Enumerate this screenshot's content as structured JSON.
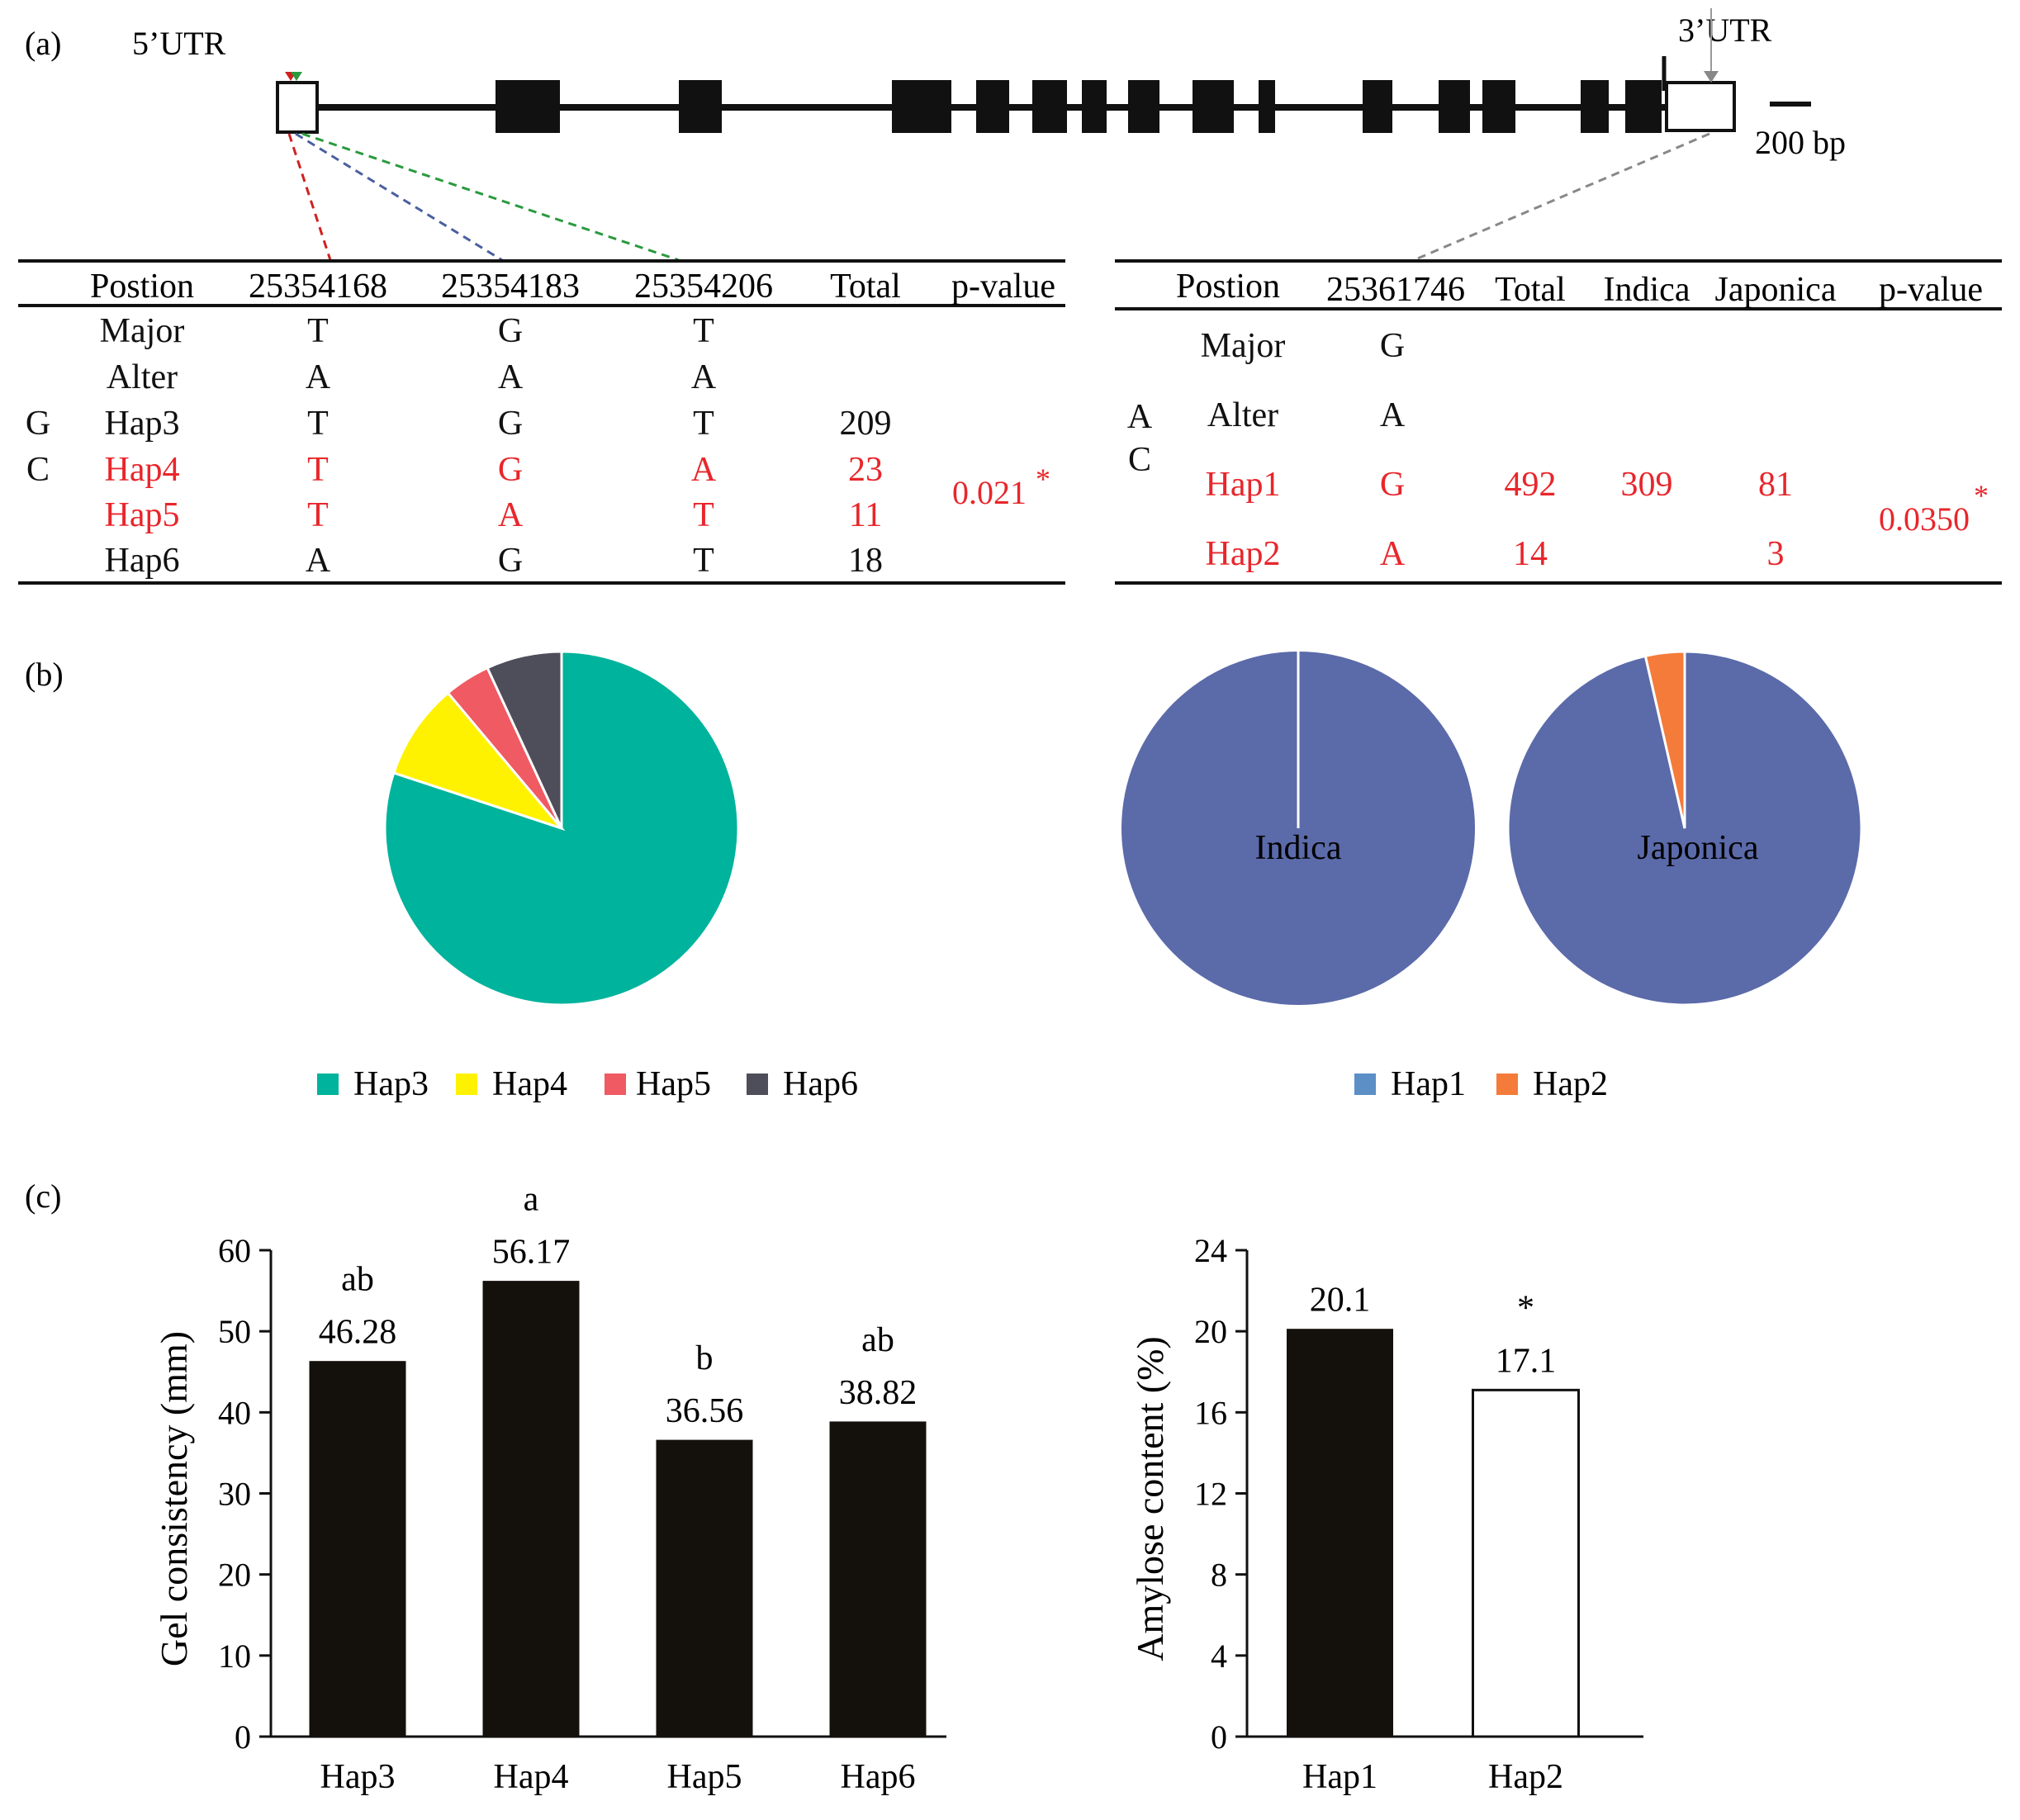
{
  "panels": {
    "a": "(a)",
    "b": "(b)",
    "c": "(c)"
  },
  "colors": {
    "red": "#e8262b",
    "hap3": "#00b39c",
    "hap4": "#fff200",
    "hap5": "#ef5a63",
    "hap6": "#4e4d5a",
    "hap1": "#5b6aa9",
    "hap1_legend": "#5b8fc6",
    "hap2": "#f47b3a",
    "bar": "#14100c"
  },
  "gene": {
    "utr5": "5’UTR",
    "utr3": "3’UTR",
    "scale": "200 bp"
  },
  "table_left": {
    "headers": [
      "Postion",
      "25354168",
      "25354183",
      "25354206",
      "Total",
      "p-value"
    ],
    "rows": [
      {
        "group": "",
        "name": "Major",
        "values": [
          "T",
          "G",
          "T"
        ],
        "total": "",
        "red": false
      },
      {
        "group": "",
        "name": "Alter",
        "values": [
          "A",
          "A",
          "A"
        ],
        "total": "",
        "red": false
      },
      {
        "group": "G",
        "name": "Hap3",
        "values": [
          "T",
          "G",
          "T"
        ],
        "total": "209",
        "red": false
      },
      {
        "group": "C",
        "name": "Hap4",
        "values": [
          "T",
          "G",
          "A"
        ],
        "total": "23",
        "red": true
      },
      {
        "group": "",
        "name": "Hap5",
        "values": [
          "T",
          "A",
          "T"
        ],
        "total": "11",
        "red": true
      },
      {
        "group": "",
        "name": "Hap6",
        "values": [
          "A",
          "G",
          "T"
        ],
        "total": "18",
        "red": false
      }
    ],
    "pvalue": "0.021",
    "star": "*"
  },
  "table_right": {
    "headers": [
      "Postion",
      "25361746",
      "Total",
      "Indica",
      "Japonica",
      "p-value"
    ],
    "rows": [
      {
        "group": "",
        "name": "Major",
        "value": "G",
        "total": "",
        "indica": "",
        "japonica": "",
        "red": false
      },
      {
        "group": "A",
        "name": "Alter",
        "value": "A",
        "total": "",
        "indica": "",
        "japonica": "",
        "red": false
      },
      {
        "group": "C",
        "name": "Hap1",
        "value": "G",
        "total": "492",
        "indica": "309",
        "japonica": "81",
        "red": true
      },
      {
        "group": "",
        "name": "Hap2",
        "value": "A",
        "total": "14",
        "indica": "",
        "japonica": "3",
        "red": true
      }
    ],
    "pvalue": "0.0350",
    "star": "*"
  },
  "chart_data": [
    {
      "type": "pie",
      "title": "",
      "labels": [
        "Hap3",
        "Hap4",
        "Hap5",
        "Hap6"
      ],
      "values": [
        209,
        23,
        11,
        18
      ],
      "legend": [
        "Hap3",
        "Hap4",
        "Hap5",
        "Hap6"
      ]
    },
    {
      "type": "pie",
      "title": "Indica",
      "labels": [
        "Hap1",
        "Hap2"
      ],
      "values": [
        309,
        0
      ]
    },
    {
      "type": "pie",
      "title": "Japonica",
      "labels": [
        "Hap1",
        "Hap2"
      ],
      "values": [
        81,
        3
      ],
      "legend": [
        "Hap1",
        "Hap2"
      ]
    },
    {
      "type": "bar",
      "categories": [
        "Hap3",
        "Hap4",
        "Hap5",
        "Hap6"
      ],
      "values": [
        46.28,
        56.17,
        36.56,
        38.82
      ],
      "value_labels": [
        "46.28",
        "56.17",
        "36.56",
        "38.82"
      ],
      "letters": [
        "ab",
        "a",
        "b",
        "ab"
      ],
      "ylabel": "Gel  consistency (mm)",
      "ylim": [
        0,
        60
      ],
      "yticks": [
        "0",
        "10",
        "20",
        "30",
        "40",
        "50",
        "60"
      ]
    },
    {
      "type": "bar",
      "categories": [
        "Hap1",
        "Hap2"
      ],
      "values": [
        20.1,
        17.1
      ],
      "value_labels": [
        "20.1",
        "17.1"
      ],
      "marks": [
        "",
        "*"
      ],
      "ylabel": "Amylose content (%)",
      "ylim": [
        0,
        24
      ],
      "yticks": [
        "0",
        "4",
        "8",
        "12",
        "16",
        "20",
        "24"
      ]
    }
  ]
}
